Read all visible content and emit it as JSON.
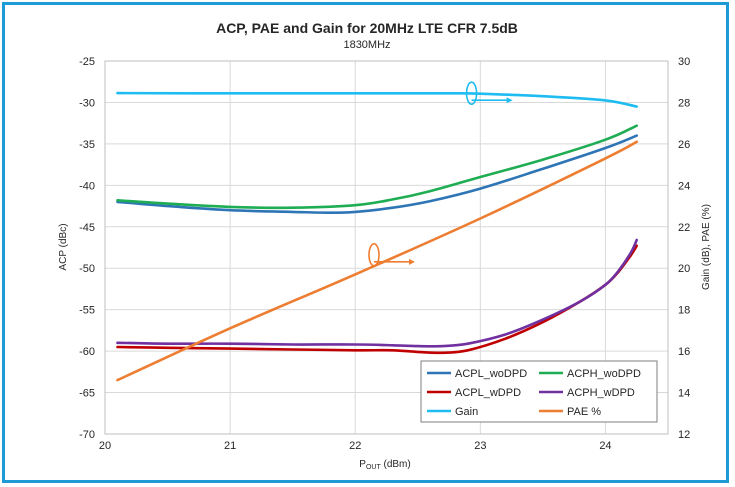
{
  "chart_data": {
    "type": "line",
    "title": "ACP, PAE and Gain for 20MHz LTE CFR 7.5dB",
    "subtitle": "1830MHz",
    "xlabel_main": "P",
    "xlabel_sub": "OUT",
    "xlabel_unit": " (dBm)",
    "ylabel_left": "ACP (dBc)",
    "ylabel_right": "Gain (dB), PAE (%)",
    "xlim": [
      20,
      24.5
    ],
    "ylim_left": [
      -70,
      -25
    ],
    "ylim_right": [
      12,
      30
    ],
    "x_ticks": [
      "20",
      "21",
      "22",
      "23",
      "24"
    ],
    "y_left_ticks": [
      "-25",
      "-30",
      "-35",
      "-40",
      "-45",
      "-50",
      "-55",
      "-60",
      "-65",
      "-70"
    ],
    "y_right_ticks": [
      "30",
      "28",
      "26",
      "24",
      "22",
      "20",
      "18",
      "16",
      "14",
      "12"
    ],
    "grid": true,
    "legend_position": "bottom-right",
    "series": [
      {
        "name": "ACPL_woDPD",
        "axis": "left",
        "color": "#2e75b6",
        "x": [
          20.1,
          20.5,
          21.0,
          21.5,
          21.8,
          22.0,
          22.3,
          22.6,
          23.0,
          23.5,
          24.0,
          24.25
        ],
        "y": [
          -42.0,
          -42.5,
          -43.0,
          -43.2,
          -43.3,
          -43.2,
          -42.7,
          -41.9,
          -40.4,
          -38.0,
          -35.5,
          -34.0
        ]
      },
      {
        "name": "ACPH_woDPD",
        "axis": "left",
        "color": "#1fad54",
        "x": [
          20.1,
          20.5,
          21.0,
          21.5,
          22.0,
          22.3,
          22.6,
          23.0,
          23.5,
          24.0,
          24.25
        ],
        "y": [
          -41.8,
          -42.2,
          -42.6,
          -42.7,
          -42.4,
          -41.7,
          -40.7,
          -39.0,
          -36.9,
          -34.5,
          -32.8
        ]
      },
      {
        "name": "ACPL_wDPD",
        "axis": "left",
        "color": "#c00000",
        "x": [
          20.1,
          20.5,
          21.0,
          21.5,
          22.0,
          22.3,
          22.5,
          22.7,
          22.9,
          23.2,
          23.5,
          23.8,
          24.0,
          24.1,
          24.2,
          24.25
        ],
        "y": [
          -59.5,
          -59.6,
          -59.7,
          -59.8,
          -59.9,
          -59.9,
          -60.1,
          -60.2,
          -59.9,
          -58.5,
          -56.5,
          -54.0,
          -52.0,
          -50.5,
          -48.5,
          -47.3
        ]
      },
      {
        "name": "ACPH_wDPD",
        "axis": "left",
        "color": "#7030a0",
        "x": [
          20.1,
          20.5,
          21.0,
          21.5,
          22.0,
          22.3,
          22.5,
          22.7,
          22.9,
          23.2,
          23.5,
          23.8,
          24.0,
          24.1,
          24.2,
          24.25
        ],
        "y": [
          -59.0,
          -59.1,
          -59.1,
          -59.2,
          -59.2,
          -59.3,
          -59.4,
          -59.4,
          -59.1,
          -58.0,
          -56.2,
          -54.0,
          -52.0,
          -50.4,
          -48.2,
          -46.6
        ]
      },
      {
        "name": "Gain",
        "axis": "right",
        "color": "#1ebcf0",
        "x": [
          20.1,
          21.0,
          22.0,
          22.5,
          22.8,
          23.0,
          23.5,
          24.0,
          24.25
        ],
        "y": [
          28.45,
          28.44,
          28.44,
          28.44,
          28.44,
          28.42,
          28.3,
          28.1,
          27.8
        ]
      },
      {
        "name": "PAE %",
        "axis": "right",
        "color": "#ed7d31",
        "x": [
          20.1,
          21.0,
          22.0,
          23.0,
          24.0,
          24.25
        ],
        "y": [
          14.6,
          17.1,
          19.7,
          22.4,
          25.3,
          26.1
        ]
      }
    ],
    "annotations": [
      {
        "target": "Gain",
        "direction": "right-axis",
        "x": 22.93,
        "y_right": 28.3,
        "color": "#1ebcf0"
      },
      {
        "target": "PAE %",
        "direction": "right-axis",
        "x": 22.15,
        "y_right": 20.5,
        "color": "#ed7d31"
      }
    ]
  }
}
